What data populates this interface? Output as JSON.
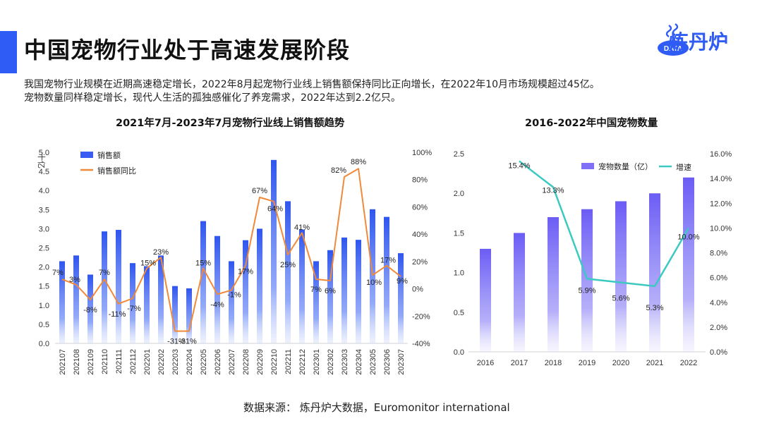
{
  "header": {
    "title": "中国宠物行业处于高速发展阶段",
    "logo_text": "炼丹炉",
    "logo_badge": "DATA"
  },
  "intro": {
    "line1": "我国宠物行业规模在近期高速稳定增长，2022年8月起宠物行业线上销售额保持同比正向增长，在2022年10月市场规模超过45亿。",
    "line2": "宠物数量同样稳定增长，现代人生活的孤独感催化了养宠需求，2022年达到2.2亿只。"
  },
  "footer": {
    "source": "数据来源：  炼丹炉大数据，Euromonitor international"
  },
  "colors": {
    "accent": "#2f5cf5",
    "bar": "#3a5cf0",
    "line_left": "#f08a3a",
    "bar_right": "#6f6af5",
    "line_right": "#3cc9c2"
  },
  "chart_data": [
    {
      "type": "bar",
      "title": "2021年7月-2023年7月宠物行业线上销售额趋势",
      "y_unit_label": "十亿",
      "categories": [
        "202107",
        "202108",
        "202109",
        "202110",
        "202111",
        "202112",
        "202201",
        "202202",
        "202203",
        "202204",
        "202205",
        "202206",
        "202207",
        "202208",
        "202209",
        "202210",
        "202211",
        "202212",
        "202301",
        "202302",
        "202303",
        "202304",
        "202305",
        "202306",
        "202307"
      ],
      "series": [
        {
          "name": "销售额",
          "type": "bar",
          "axis": "left",
          "values": [
            2.15,
            2.3,
            1.8,
            2.93,
            2.97,
            2.1,
            2.02,
            2.3,
            1.5,
            1.44,
            3.2,
            2.81,
            2.15,
            2.7,
            3.0,
            4.8,
            3.72,
            2.98,
            2.15,
            2.44,
            2.77,
            2.71,
            3.51,
            3.31,
            2.36
          ]
        },
        {
          "name": "销售额同比",
          "type": "line",
          "axis": "right",
          "values": [
            7,
            3,
            -8,
            7,
            -11,
            -7,
            15,
            23,
            -31,
            -31,
            15,
            -4,
            -1,
            17,
            67,
            64,
            25,
            41,
            7,
            6,
            82,
            88,
            10,
            17,
            9
          ],
          "labels": [
            "7%",
            "3%",
            "-8%",
            "7%",
            "-11%",
            "-7%",
            "15%",
            "23%",
            "-31%",
            "-31%",
            "15%",
            "-4%",
            "-1%",
            "17%",
            "67%",
            "64%",
            "25%",
            "41%",
            "7%",
            "6%",
            "82%",
            "88%",
            "10%",
            "17%",
            "9%"
          ]
        }
      ],
      "ylim_left": [
        0,
        5
      ],
      "yticks_left": [
        "0.0",
        "0.5",
        "1.0",
        "1.5",
        "2.0",
        "2.5",
        "3.0",
        "3.5",
        "4.0",
        "4.5",
        "5.0"
      ],
      "ylim_right": [
        -40,
        100
      ],
      "yticks_right": [
        "-40%",
        "-20%",
        "0%",
        "20%",
        "40%",
        "60%",
        "80%",
        "100%"
      ],
      "legend": [
        "销售额",
        "销售额同比"
      ]
    },
    {
      "type": "bar",
      "title": "2016-2022年中国宠物数量",
      "categories": [
        "2016",
        "2017",
        "2018",
        "2019",
        "2020",
        "2021",
        "2022"
      ],
      "series": [
        {
          "name": "宠物数量（亿）",
          "type": "bar",
          "axis": "left",
          "values": [
            1.3,
            1.5,
            1.7,
            1.8,
            1.9,
            2.0,
            2.2
          ]
        },
        {
          "name": "增速",
          "type": "line",
          "axis": "right",
          "values": [
            null,
            15.4,
            13.3,
            5.9,
            5.6,
            5.3,
            10.0
          ],
          "labels": [
            "",
            "15.4%",
            "13.3%",
            "5.9%",
            "5.6%",
            "5.3%",
            "10.0%"
          ]
        }
      ],
      "ylim_left": [
        0,
        2.5
      ],
      "yticks_left": [
        "0.0",
        "0.5",
        "1.0",
        "1.5",
        "2.0",
        "2.5"
      ],
      "ylim_right": [
        0,
        16
      ],
      "yticks_right": [
        "0.0%",
        "2.0%",
        "4.0%",
        "6.0%",
        "8.0%",
        "10.0%",
        "12.0%",
        "14.0%",
        "16.0%"
      ],
      "legend": [
        "宠物数量（亿）",
        "增速"
      ]
    }
  ]
}
